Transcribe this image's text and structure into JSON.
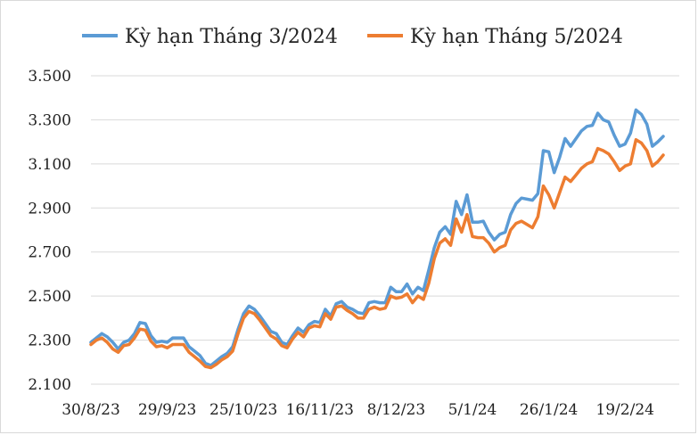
{
  "chart_data": {
    "type": "line",
    "title": "",
    "xlabel": "",
    "ylabel": "",
    "ylim": [
      2100,
      3500
    ],
    "yticks": [
      "2.100",
      "2.300",
      "2.500",
      "2.700",
      "2.900",
      "3.100",
      "3.300",
      "3.500"
    ],
    "ytick_values": [
      2100,
      2300,
      2500,
      2700,
      2900,
      3100,
      3300,
      3500
    ],
    "x_tick_labels": [
      "30/8/23",
      "29/9/23",
      "25/10/23",
      "16/11/23",
      "8/12/23",
      "5/1/24",
      "26/1/24",
      "19/2/24"
    ],
    "x_tick_indices": [
      0,
      14,
      28,
      42,
      56,
      70,
      84,
      98
    ],
    "grid": "horizontal",
    "legend_position": "top",
    "series": [
      {
        "name": "Kỳ hạn Tháng 3/2024",
        "color": "#5b9bd5",
        "values": [
          2290,
          2310,
          2330,
          2315,
          2290,
          2260,
          2290,
          2300,
          2330,
          2380,
          2375,
          2320,
          2290,
          2295,
          2290,
          2310,
          2310,
          2310,
          2270,
          2250,
          2230,
          2195,
          2185,
          2205,
          2225,
          2240,
          2270,
          2350,
          2420,
          2455,
          2440,
          2410,
          2375,
          2340,
          2330,
          2290,
          2280,
          2320,
          2355,
          2335,
          2370,
          2385,
          2380,
          2440,
          2410,
          2465,
          2475,
          2450,
          2440,
          2425,
          2420,
          2470,
          2475,
          2470,
          2470,
          2540,
          2520,
          2520,
          2555,
          2510,
          2540,
          2525,
          2620,
          2720,
          2790,
          2815,
          2780,
          2930,
          2870,
          2960,
          2835,
          2835,
          2840,
          2790,
          2755,
          2780,
          2790,
          2870,
          2920,
          2945,
          2940,
          2935,
          2965,
          3160,
          3155,
          3060,
          3130,
          3215,
          3180,
          3215,
          3250,
          3270,
          3275,
          3330,
          3300,
          3290,
          3230,
          3180,
          3190,
          3240,
          3345,
          3325,
          3280,
          3180,
          3200,
          3225
        ],
        "stroke_width": 3.5
      },
      {
        "name": "Kỳ hạn Tháng 5/2024",
        "color": "#ed7d31",
        "values": [
          2280,
          2300,
          2310,
          2290,
          2260,
          2245,
          2275,
          2280,
          2310,
          2350,
          2345,
          2295,
          2270,
          2275,
          2265,
          2280,
          2280,
          2280,
          2245,
          2225,
          2205,
          2180,
          2175,
          2190,
          2210,
          2225,
          2250,
          2330,
          2400,
          2430,
          2420,
          2390,
          2355,
          2320,
          2305,
          2275,
          2265,
          2305,
          2335,
          2315,
          2355,
          2365,
          2360,
          2420,
          2395,
          2450,
          2455,
          2435,
          2420,
          2400,
          2400,
          2440,
          2450,
          2440,
          2445,
          2500,
          2490,
          2495,
          2510,
          2470,
          2500,
          2485,
          2560,
          2670,
          2740,
          2760,
          2730,
          2850,
          2790,
          2870,
          2770,
          2765,
          2765,
          2740,
          2700,
          2720,
          2730,
          2800,
          2830,
          2840,
          2825,
          2810,
          2860,
          3000,
          2960,
          2900,
          2970,
          3040,
          3020,
          3050,
          3080,
          3100,
          3110,
          3170,
          3160,
          3145,
          3110,
          3070,
          3090,
          3100,
          3210,
          3195,
          3160,
          3090,
          3110,
          3140
        ],
        "stroke_width": 3.5
      }
    ]
  }
}
